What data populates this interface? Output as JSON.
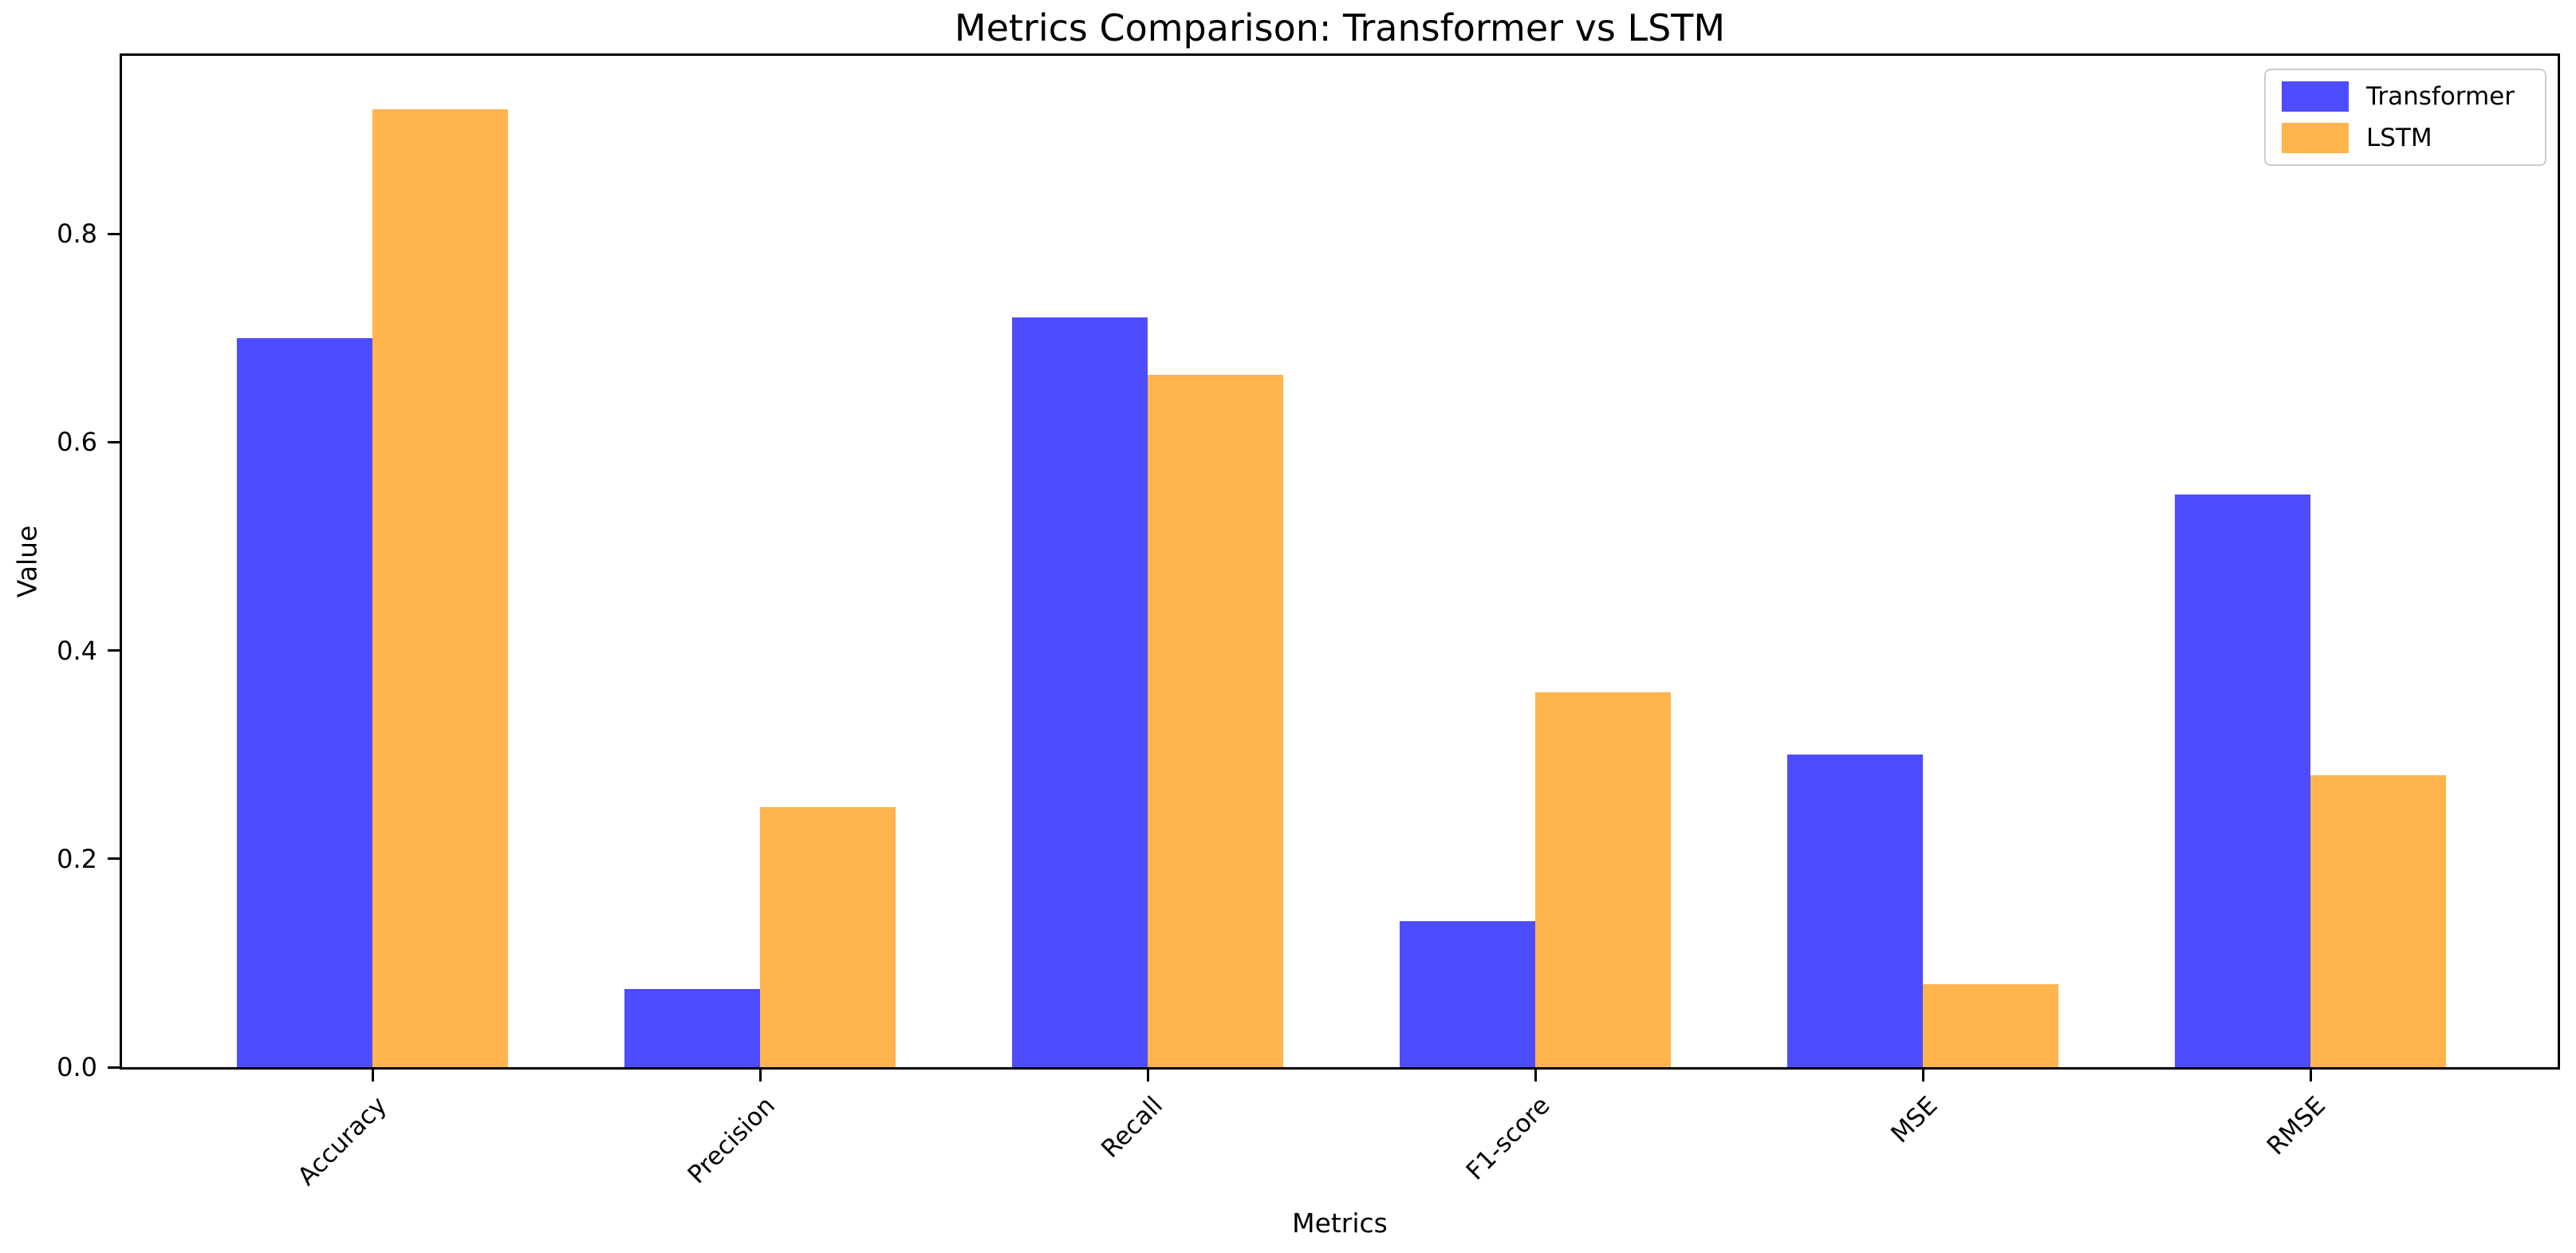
{
  "figure": {
    "background": "#ffffff"
  },
  "chart_data": {
    "type": "bar",
    "title": "Metrics Comparison: Transformer vs LSTM",
    "xlabel": "Metrics",
    "ylabel": "Value",
    "categories": [
      "Accuracy",
      "Precision",
      "Recall",
      "F1-score",
      "MSE",
      "RMSE"
    ],
    "series": [
      {
        "name": "Transformer",
        "color": "#4D4DFF",
        "values": [
          0.7,
          0.075,
          0.72,
          0.14,
          0.3,
          0.55
        ]
      },
      {
        "name": "LSTM",
        "color": "#FFB44D",
        "values": [
          0.92,
          0.25,
          0.665,
          0.36,
          0.08,
          0.28
        ]
      }
    ],
    "ylim": [
      0,
      0.971
    ],
    "yticks": [
      0.0,
      0.2,
      0.4,
      0.6,
      0.8
    ],
    "ytick_labels": [
      "0.0",
      "0.2",
      "0.4",
      "0.6",
      "0.8"
    ],
    "xlim": [
      -0.646,
      5.637
    ],
    "bar_width_units": 0.35,
    "xtick_rotation_deg": 45,
    "grid": false,
    "legend_position": "upper-right",
    "axis_color": "#000000"
  }
}
